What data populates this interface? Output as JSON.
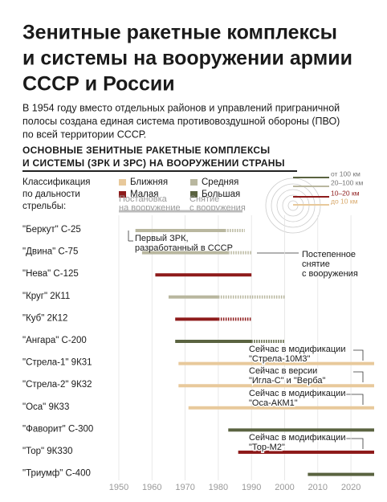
{
  "header": {
    "title_lines": [
      "Зенитные ракетные комплексы",
      "и системы на вооружении армии",
      "СССР и России"
    ],
    "intro_lines": [
      "В 1954 году вместо отдельных районов и управлений приграничной",
      "полосы создана единая система противовоздушной обороны (ПВО)",
      "по всей территории СССР."
    ],
    "section_lines": [
      "ОСНОВНЫЕ ЗЕНИТНЫЕ РАКЕТНЫЕ КОМПЛЕКСЫ",
      "И СИСТЕМЫ (ЗРК И ЗРС) НА  ВООРУЖЕНИИ СТРАНЫ"
    ]
  },
  "chart_data": {
    "type": "timeline",
    "legend_title_lines": [
      "Классификация",
      "по дальности",
      "стрельбы:"
    ],
    "classes": [
      {
        "name": "Ближняя",
        "color": "#e8c99b",
        "range": "до 10 км"
      },
      {
        "name": "Средняя",
        "color": "#b9b79f",
        "range": "20–100 км"
      },
      {
        "name": "Малая",
        "color": "#8e1b1b",
        "range": "10–20 км"
      },
      {
        "name": "Большая",
        "color": "#5a6340",
        "range": "от 100 км"
      }
    ],
    "key_labels": {
      "start": [
        "Постановка",
        "на вооружение"
      ],
      "end": [
        "Снятие",
        "с вооружения"
      ]
    },
    "rows": [
      {
        "name": "\"Беркут\" С-25",
        "class": 1,
        "start": 1955,
        "solid_end": 1982,
        "end": 1988
      },
      {
        "name": "\"Двина\" С-75",
        "class": 1,
        "start": 1957,
        "solid_end": 1983,
        "end": 1990
      },
      {
        "name": "\"Нева\" С-125",
        "class": 2,
        "start": 1961,
        "solid_end": 1990,
        "end": 1990
      },
      {
        "name": "\"Круг\" 2К11",
        "class": 1,
        "start": 1965,
        "solid_end": 1980,
        "end": 2000
      },
      {
        "name": "\"Куб\" 2К12",
        "class": 2,
        "start": 1967,
        "solid_end": 1980,
        "end": 1990
      },
      {
        "name": "\"Ангара\" С-200",
        "class": 3,
        "start": 1967,
        "solid_end": 1990,
        "end": 2000
      },
      {
        "name": "\"Стрела-1\" 9К31",
        "class": 0,
        "start": 1968,
        "solid_end": null,
        "end": null
      },
      {
        "name": "\"Стрела-2\" 9К32",
        "class": 0,
        "start": 1968,
        "solid_end": null,
        "end": null
      },
      {
        "name": "\"Оса\" 9К33",
        "class": 0,
        "start": 1971,
        "solid_end": null,
        "end": null
      },
      {
        "name": "\"Фаворит\" С-300",
        "class": 3,
        "start": 1983,
        "solid_end": null,
        "end": null
      },
      {
        "name": "\"Тор\" 9К330",
        "class": 2,
        "start": 1986,
        "solid_end": null,
        "end": null
      },
      {
        "name": "\"Триумф\" С-400",
        "class": 3,
        "start": 2007,
        "solid_end": null,
        "end": null
      }
    ],
    "annotations": [
      {
        "lines": [
          "Первый ЗРК,",
          "разработанный в СССР"
        ]
      },
      {
        "lines": [
          "Постепенное",
          "снятие",
          "с вооружения"
        ]
      },
      {
        "lines": [
          "Сейчас в модификации",
          "\"Стрела-10М3\""
        ]
      },
      {
        "lines": [
          "Сейчас в версии",
          "\"Игла-С\" и \"Верба\""
        ]
      },
      {
        "lines": [
          "Сейчас в модификации",
          "\"Оса-АКМ1\""
        ]
      },
      {
        "lines": [
          "Сейчас в модификации",
          "\"Тор-М2\""
        ]
      }
    ],
    "xlim": [
      1950,
      2027
    ],
    "xticks": [
      1950,
      1960,
      1970,
      1980,
      1990,
      2000,
      2010,
      2020
    ]
  }
}
